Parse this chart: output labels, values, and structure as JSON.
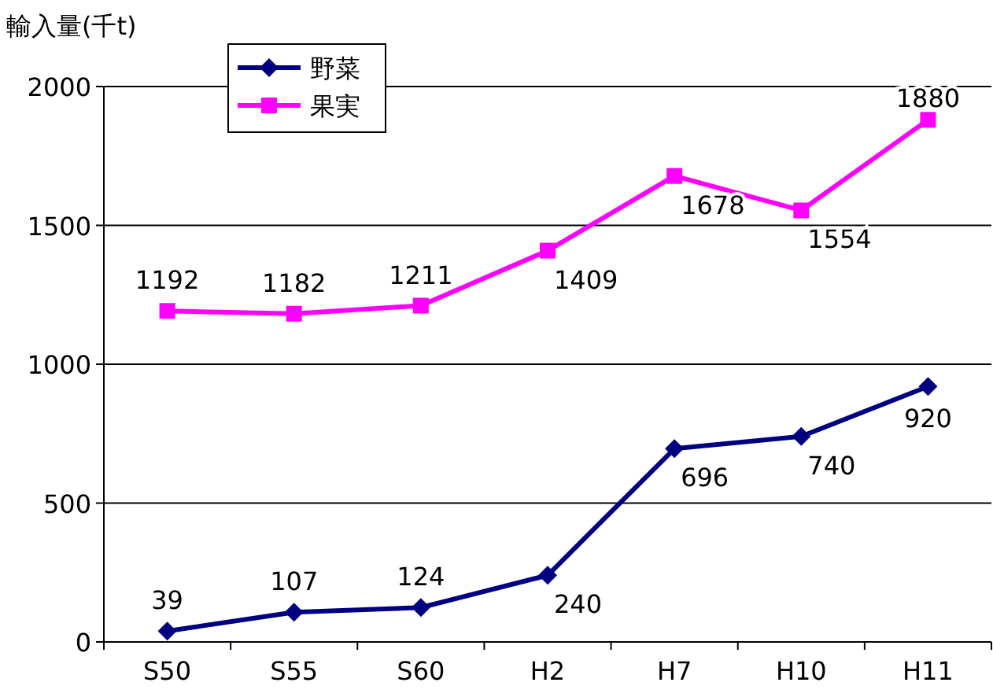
{
  "chart_data": {
    "type": "line",
    "ylabel": "輸入量(千t)",
    "categories": [
      "S50",
      "S55",
      "S60",
      "H2",
      "H7",
      "H10",
      "H11"
    ],
    "series": [
      {
        "name": "野菜",
        "color": "#000080",
        "marker": "diamond",
        "values": [
          39,
          107,
          124,
          240,
          696,
          740,
          920
        ]
      },
      {
        "name": "果実",
        "color": "#ff00ff",
        "marker": "square",
        "values": [
          1192,
          1182,
          1211,
          1409,
          1678,
          1554,
          1880
        ]
      }
    ],
    "ylim": [
      0,
      2000
    ],
    "yticks": [
      0,
      500,
      1000,
      1500,
      2000
    ],
    "grid": "y",
    "legend": "top left",
    "data_labels": true
  }
}
